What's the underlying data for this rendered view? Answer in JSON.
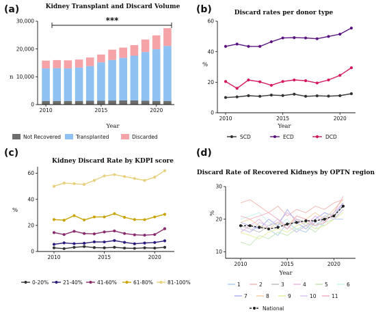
{
  "colors": {
    "not_recovered": "#6d6d6d",
    "transplanted": "#8fc1f2",
    "discarded": "#f6a3a7",
    "scd": "#333333",
    "ecd": "#5a1280",
    "dcd": "#d6165e",
    "kdpi_0_20": "#333333",
    "kdpi_21_40": "#2d1a7a",
    "kdpi_41_60": "#8a2a6e",
    "kdpi_61_80": "#c9a400",
    "kdpi_81_100": "#e7cf7c"
  },
  "chart_data": [
    {
      "panel": "(a)",
      "type": "bar",
      "stacked": true,
      "title": "Kidney Transplant and Discard Volume",
      "xlabel": "Year",
      "ylabel": "n",
      "ylim": [
        0,
        30000
      ],
      "yticks": [
        "0",
        "10,000",
        "20,000",
        "30,000"
      ],
      "xticks": [
        "2010",
        "2015",
        "2020"
      ],
      "categories": [
        2010,
        2011,
        2012,
        2013,
        2014,
        2015,
        2016,
        2017,
        2018,
        2019,
        2020,
        2021
      ],
      "series": [
        {
          "name": "Not Recovered",
          "values": [
            1300,
            1300,
            1300,
            1300,
            1350,
            1400,
            1450,
            1500,
            1500,
            1400,
            1300,
            1300
          ]
        },
        {
          "name": "Transplanted",
          "values": [
            11700,
            11800,
            11700,
            12000,
            12500,
            13800,
            14600,
            15300,
            16100,
            17500,
            18600,
            19800
          ]
        },
        {
          "name": "Discarded",
          "values": [
            2800,
            2900,
            2900,
            2900,
            3100,
            2800,
            3700,
            3700,
            3800,
            4500,
            5000,
            6400
          ]
        }
      ],
      "annotation": "***",
      "grid": false,
      "legend_position": "bottom"
    },
    {
      "panel": "(b)",
      "type": "line",
      "title": "Discard rates per donor type",
      "xlabel": "Year",
      "ylabel": "%",
      "ylim": [
        0,
        60
      ],
      "yticks": [
        "0",
        "20",
        "40",
        "60"
      ],
      "xticks": [
        "2010",
        "2015",
        "2020"
      ],
      "x": [
        2010,
        2011,
        2012,
        2013,
        2014,
        2015,
        2016,
        2017,
        2018,
        2019,
        2020,
        2021
      ],
      "series": [
        {
          "name": "SCD",
          "values": [
            10,
            10.4,
            11.2,
            10.8,
            11.6,
            11.3,
            12.2,
            10.8,
            11.1,
            10.9,
            11.2,
            12.5
          ]
        },
        {
          "name": "ECD",
          "values": [
            43.5,
            45,
            43.5,
            43.5,
            46.5,
            49,
            49.2,
            49,
            48.5,
            50,
            51.5,
            55.5
          ]
        },
        {
          "name": "DCD",
          "values": [
            20.5,
            16,
            21.5,
            20.3,
            18,
            20.5,
            21.5,
            21,
            19.5,
            21.5,
            24.5,
            29.5
          ]
        }
      ],
      "grid": false,
      "legend_position": "bottom"
    },
    {
      "panel": "(c)",
      "type": "line",
      "title": "Kidney Discard Rate by KDPI score",
      "xlabel": "",
      "ylabel": "%",
      "ylim": [
        0,
        65
      ],
      "yticks": [
        "0",
        "20",
        "40",
        "60"
      ],
      "xticks": [
        "2010",
        "2015",
        "2020"
      ],
      "x": [
        2010,
        2011,
        2012,
        2013,
        2014,
        2015,
        2016,
        2017,
        2018,
        2019,
        2020,
        2021
      ],
      "series": [
        {
          "name": "0-20%",
          "values": [
            2.8,
            2.2,
            3.2,
            3.8,
            3.0,
            2.8,
            3.2,
            2.6,
            2.4,
            2.8,
            2.6,
            3.2
          ]
        },
        {
          "name": "21-40%",
          "values": [
            5.5,
            6.6,
            6.0,
            6.3,
            7.4,
            7.3,
            8.4,
            7.0,
            5.9,
            6.5,
            6.9,
            8.2
          ]
        },
        {
          "name": "41-60%",
          "values": [
            14.5,
            13.0,
            15.5,
            13.8,
            13.5,
            15.0,
            15.8,
            13.8,
            12.8,
            12.5,
            13.0,
            17.5
          ]
        },
        {
          "name": "61-80%",
          "values": [
            24.5,
            24.0,
            27.5,
            24.2,
            26.5,
            26.5,
            29.0,
            26.2,
            24.5,
            24.4,
            26.5,
            28.5
          ]
        },
        {
          "name": "81-100%",
          "values": [
            50.0,
            52.5,
            52.0,
            51.5,
            54.5,
            58.0,
            59.0,
            57.5,
            56.0,
            54.5,
            57.0,
            62.0
          ]
        }
      ],
      "grid": false,
      "legend_position": "bottom"
    },
    {
      "panel": "(d)",
      "type": "line",
      "title": "Discard Rate of Recovered Kidneys by OPTN region",
      "xlabel": "Year",
      "ylabel": "%",
      "ylim": [
        8,
        30
      ],
      "yticks": [
        "10",
        "20",
        "30"
      ],
      "xticks": [
        "2010",
        "2015",
        "2020"
      ],
      "x": [
        2010,
        2011,
        2012,
        2013,
        2014,
        2015,
        2016,
        2017,
        2018,
        2019,
        2020,
        2021
      ],
      "series": [
        {
          "name": "1",
          "values": [
            17,
            16,
            18,
            17,
            15,
            19,
            17,
            16,
            19,
            18,
            20,
            20
          ]
        },
        {
          "name": "2",
          "values": [
            25,
            26,
            24,
            22,
            24,
            21,
            23,
            22,
            24,
            23,
            25,
            26
          ]
        },
        {
          "name": "3",
          "values": [
            18,
            17,
            16,
            18,
            19,
            17,
            20,
            19,
            18,
            20,
            21,
            24
          ]
        },
        {
          "name": "4",
          "values": [
            16,
            18,
            20,
            17,
            19,
            22,
            20,
            18,
            21,
            19,
            22,
            25
          ]
        },
        {
          "name": "5",
          "values": [
            13,
            12,
            15,
            14,
            16,
            15,
            17,
            18,
            16,
            19,
            20,
            23
          ]
        },
        {
          "name": "6",
          "values": [
            20,
            21,
            22,
            19,
            18,
            20,
            16,
            19,
            17,
            21,
            22,
            24
          ]
        },
        {
          "name": "7",
          "values": [
            19,
            18,
            17,
            20,
            18,
            23,
            19,
            17,
            20,
            22,
            21,
            25
          ]
        },
        {
          "name": "8",
          "values": [
            19,
            20,
            18,
            17,
            19,
            18,
            21,
            20,
            22,
            20,
            23,
            26
          ]
        },
        {
          "name": "9",
          "values": [
            16,
            15,
            14,
            16,
            17,
            16,
            18,
            19,
            17,
            18,
            20,
            22
          ]
        },
        {
          "name": "10",
          "values": [
            17,
            16,
            19,
            18,
            20,
            18,
            16,
            18,
            19,
            21,
            20,
            23
          ]
        },
        {
          "name": "11",
          "values": [
            21,
            20,
            21,
            22,
            20,
            17,
            21,
            20,
            18,
            19,
            22,
            27
          ]
        },
        {
          "name": "National",
          "values": [
            18,
            18,
            17.5,
            17,
            17.5,
            18.5,
            19,
            19.5,
            19.5,
            20,
            21,
            24
          ]
        }
      ],
      "grid": false,
      "legend_position": "bottom"
    }
  ]
}
